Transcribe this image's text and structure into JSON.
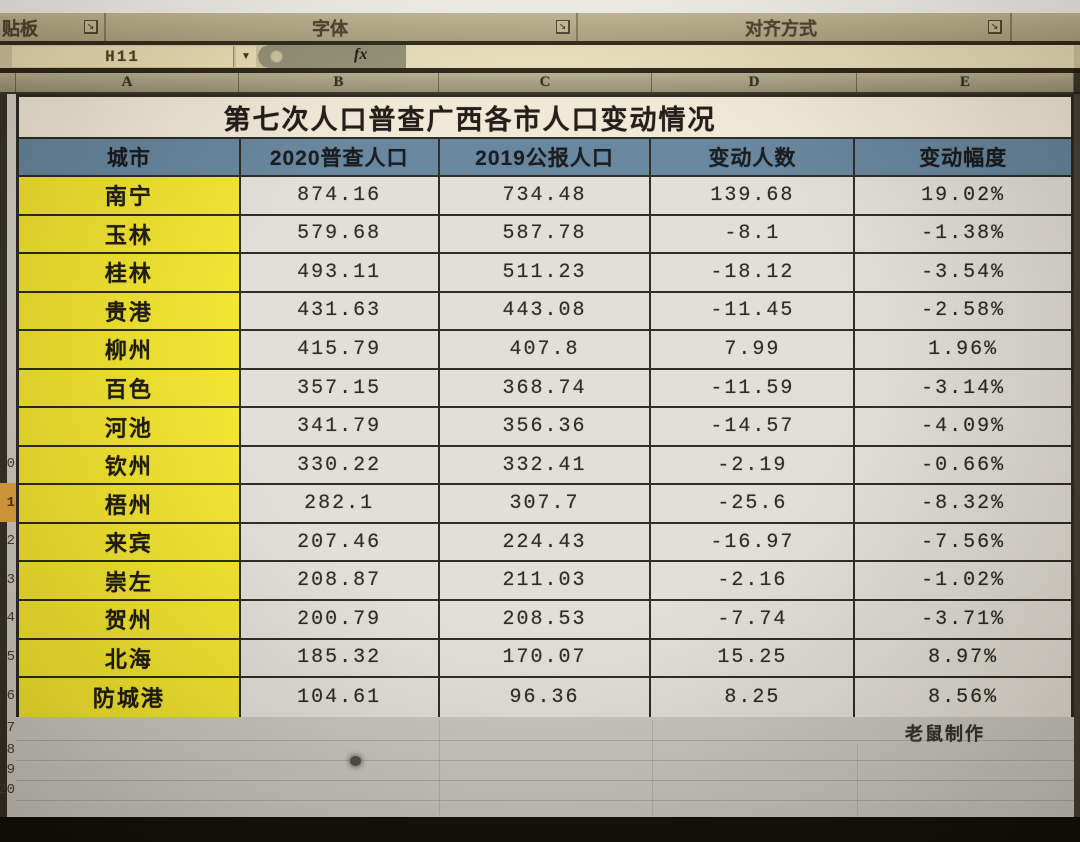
{
  "ribbon": {
    "groups": [
      {
        "label": "贴板"
      },
      {
        "label": "字体"
      },
      {
        "label": "对齐方式"
      }
    ]
  },
  "formula_bar": {
    "name_box_value": "H11",
    "fx_label": "fx",
    "formula_value": ""
  },
  "grid": {
    "column_letters": [
      "A",
      "B",
      "C",
      "D",
      "E"
    ],
    "row_numbers": [
      "0",
      "1",
      "2",
      "3",
      "4",
      "5",
      "6",
      "7",
      "8",
      "9",
      "20"
    ],
    "highlighted_row_index": 1
  },
  "table": {
    "title": "第七次人口普查广西各市人口变动情况",
    "headers": [
      "城市",
      "2020普查人口",
      "2019公报人口",
      "变动人数",
      "变动幅度"
    ],
    "rows": [
      [
        "南宁",
        "874.16",
        "734.48",
        "139.68",
        "19.02%"
      ],
      [
        "玉林",
        "579.68",
        "587.78",
        "-8.1",
        "-1.38%"
      ],
      [
        "桂林",
        "493.11",
        "511.23",
        "-18.12",
        "-3.54%"
      ],
      [
        "贵港",
        "431.63",
        "443.08",
        "-11.45",
        "-2.58%"
      ],
      [
        "柳州",
        "415.79",
        "407.8",
        "7.99",
        "1.96%"
      ],
      [
        "百色",
        "357.15",
        "368.74",
        "-11.59",
        "-3.14%"
      ],
      [
        "河池",
        "341.79",
        "356.36",
        "-14.57",
        "-4.09%"
      ],
      [
        "钦州",
        "330.22",
        "332.41",
        "-2.19",
        "-0.66%"
      ],
      [
        "梧州",
        "282.1",
        "307.7",
        "-25.6",
        "-8.32%"
      ],
      [
        "来宾",
        "207.46",
        "224.43",
        "-16.97",
        "-7.56%"
      ],
      [
        "崇左",
        "208.87",
        "211.03",
        "-2.16",
        "-1.02%"
      ],
      [
        "贺州",
        "200.79",
        "208.53",
        "-7.74",
        "-3.71%"
      ],
      [
        "北海",
        "185.32",
        "170.07",
        "15.25",
        "8.97%"
      ],
      [
        "防城港",
        "104.61",
        "96.36",
        "8.25",
        "8.56%"
      ]
    ],
    "credit": "老鼠制作"
  },
  "appearance": {
    "header_blue": "#60809a",
    "city_yellow": "#f2e428",
    "row_highlight_orange": "#e2a03c",
    "title_cream": "#efe8d7",
    "ribbon_beige": "#bfb491"
  }
}
